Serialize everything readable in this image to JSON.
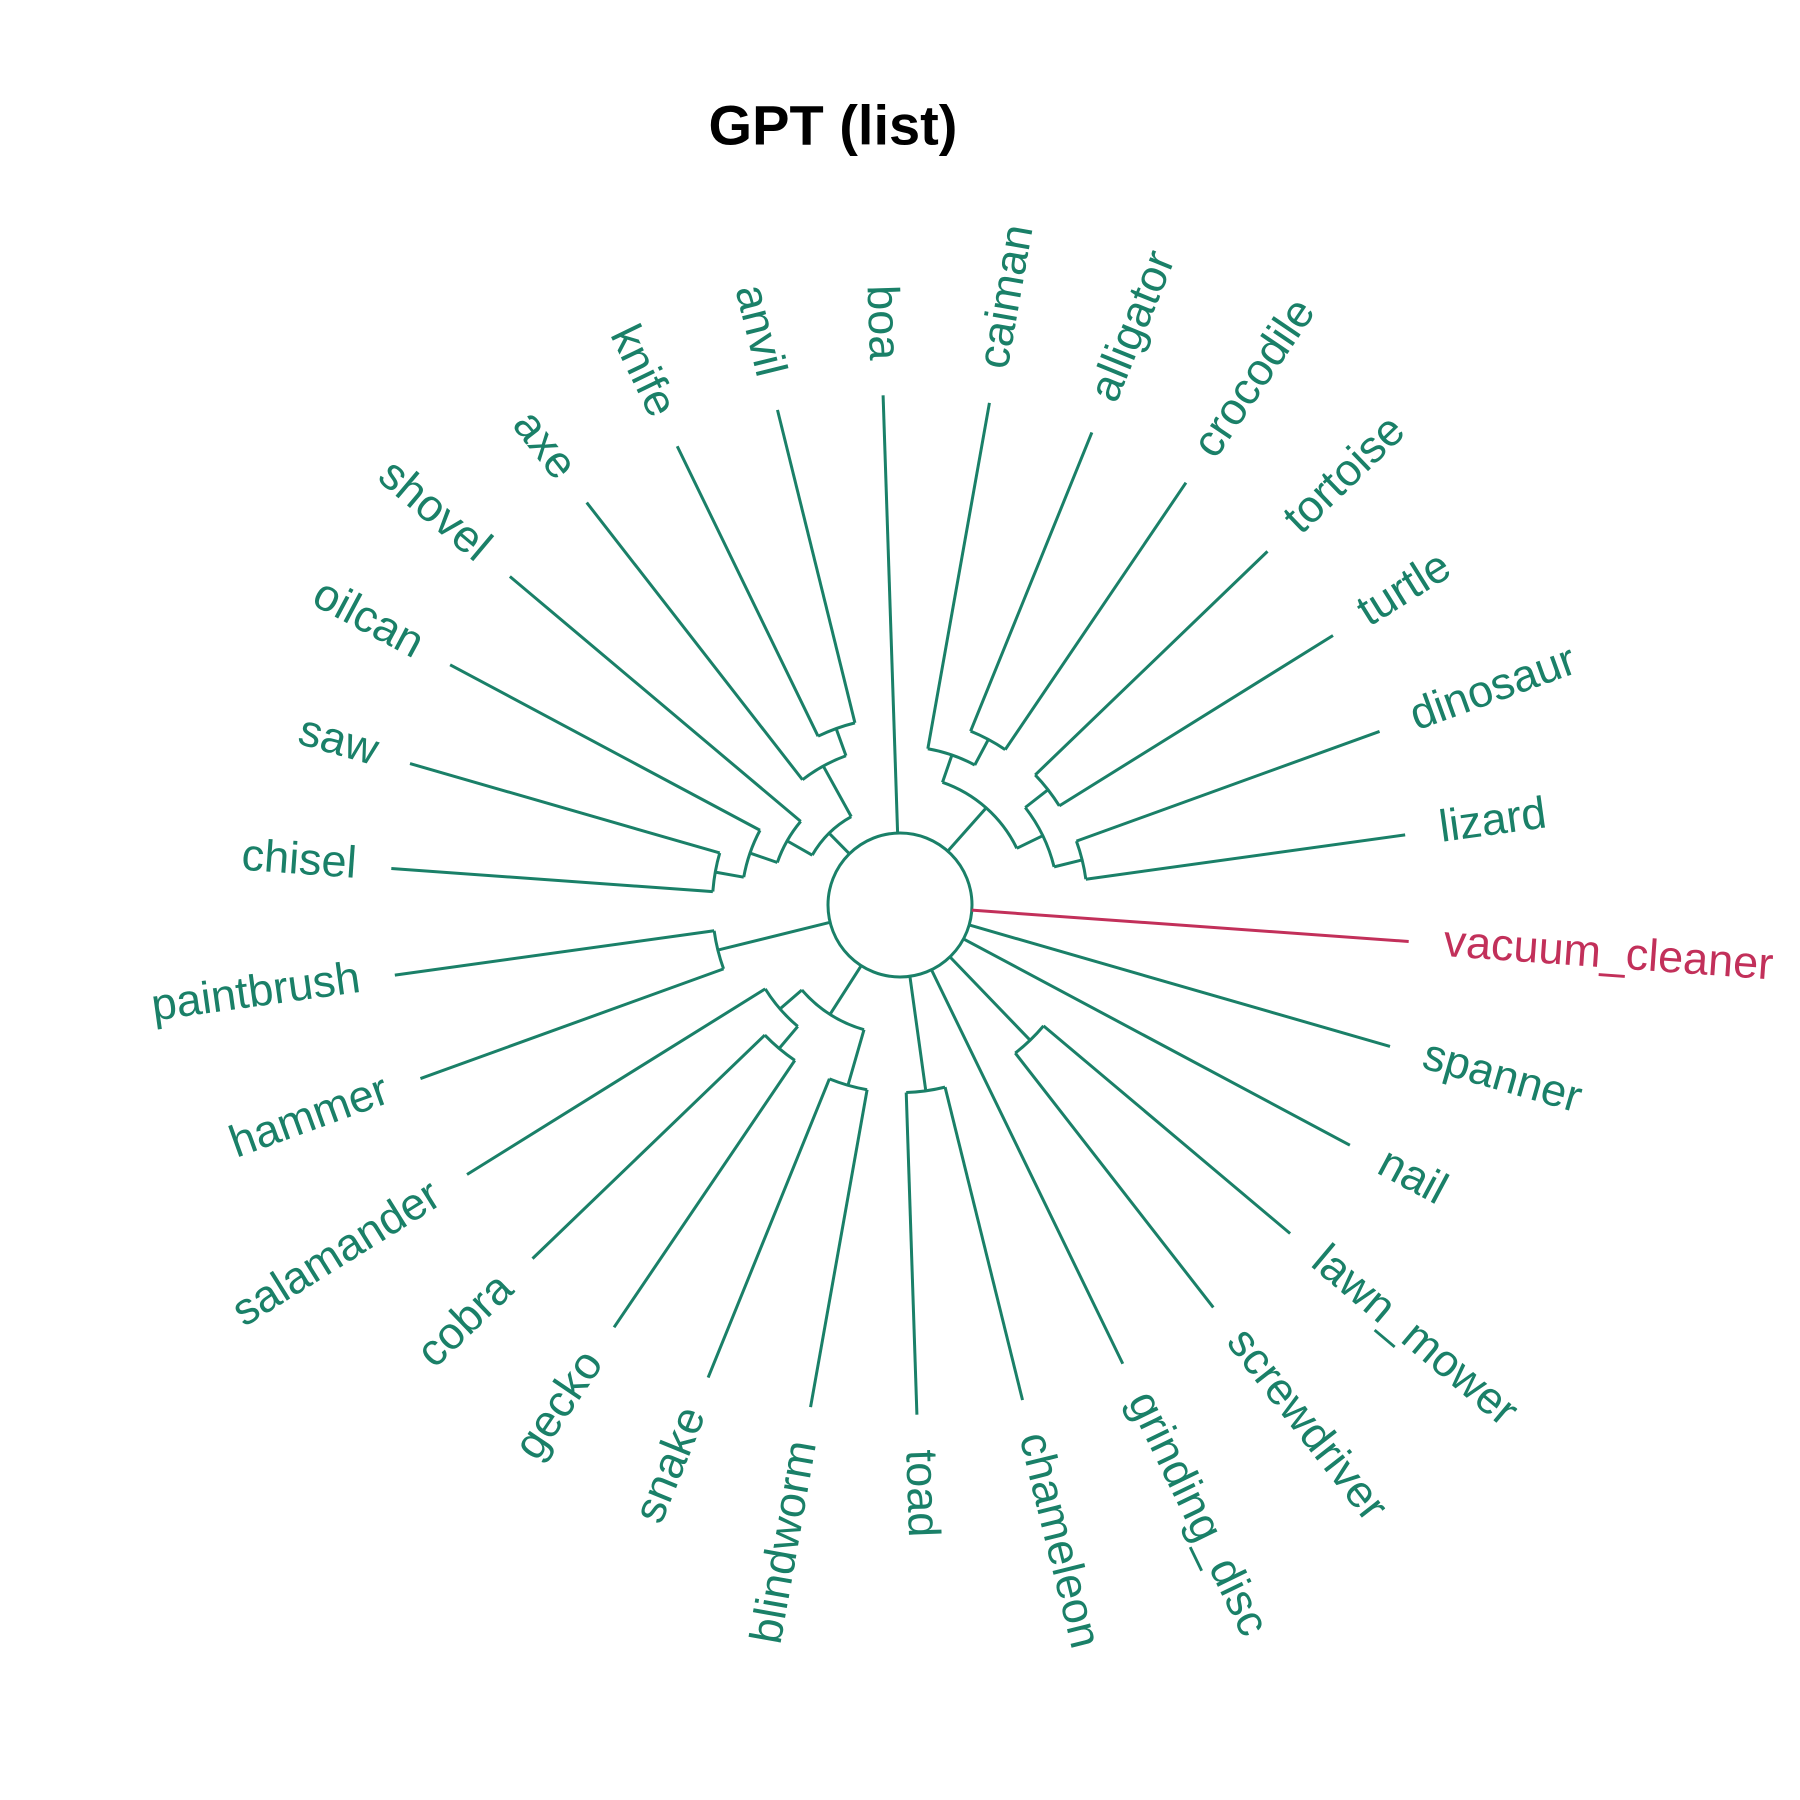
{
  "title": "GPT (list)",
  "colors": {
    "main": "#1a8068",
    "outlier": "#c2305a"
  },
  "chart_data": {
    "type": "circular-dendrogram",
    "tips": [
      {
        "name": "lizard",
        "color": "main"
      },
      {
        "name": "dinosaur",
        "color": "main"
      },
      {
        "name": "turtle",
        "color": "main"
      },
      {
        "name": "tortoise",
        "color": "main"
      },
      {
        "name": "crocodile",
        "color": "main"
      },
      {
        "name": "alligator",
        "color": "main"
      },
      {
        "name": "caiman",
        "color": "main"
      },
      {
        "name": "boa",
        "color": "main"
      },
      {
        "name": "anvil",
        "color": "main"
      },
      {
        "name": "knife",
        "color": "main"
      },
      {
        "name": "axe",
        "color": "main"
      },
      {
        "name": "shovel",
        "color": "main"
      },
      {
        "name": "oilcan",
        "color": "main"
      },
      {
        "name": "saw",
        "color": "main"
      },
      {
        "name": "chisel",
        "color": "main"
      },
      {
        "name": "paintbrush",
        "color": "main"
      },
      {
        "name": "hammer",
        "color": "main"
      },
      {
        "name": "salamander",
        "color": "main"
      },
      {
        "name": "cobra",
        "color": "main"
      },
      {
        "name": "gecko",
        "color": "main"
      },
      {
        "name": "snake",
        "color": "main"
      },
      {
        "name": "blindworm",
        "color": "main"
      },
      {
        "name": "toad",
        "color": "main"
      },
      {
        "name": "chameleon",
        "color": "main"
      },
      {
        "name": "grinding_disc",
        "color": "main"
      },
      {
        "name": "screwdriver",
        "color": "main"
      },
      {
        "name": "lawn_mower",
        "color": "main"
      },
      {
        "name": "nail",
        "color": "main"
      },
      {
        "name": "spanner",
        "color": "main"
      },
      {
        "name": "vacuum_cleaner",
        "color": "outlier"
      }
    ],
    "tree": {
      "children": [
        {
          "children": [
            {
              "children": [
                {
                  "children": [
                    {
                      "tip": 0
                    },
                    {
                      "tip": 1
                    }
                  ]
                },
                {
                  "children": [
                    {
                      "tip": 2
                    },
                    {
                      "tip": 3
                    }
                  ]
                }
              ]
            },
            {
              "children": [
                {
                  "children": [
                    {
                      "tip": 4
                    },
                    {
                      "tip": 5
                    }
                  ]
                },
                {
                  "tip": 6
                }
              ]
            }
          ]
        },
        {
          "tip": 7
        },
        {
          "children": [
            {
              "children": [
                {
                  "children": [
                    {
                      "tip": 8
                    },
                    {
                      "tip": 9
                    }
                  ]
                },
                {
                  "tip": 10
                }
              ]
            },
            {
              "children": [
                {
                  "tip": 11
                },
                {
                  "children": [
                    {
                      "tip": 12
                    },
                    {
                      "children": [
                        {
                          "tip": 13
                        },
                        {
                          "tip": 14
                        }
                      ]
                    }
                  ]
                }
              ]
            }
          ]
        },
        {
          "children": [
            {
              "tip": 15
            },
            {
              "tip": 16
            }
          ]
        },
        {
          "children": [
            {
              "children": [
                {
                  "tip": 17
                },
                {
                  "children": [
                    {
                      "tip": 18
                    },
                    {
                      "tip": 19
                    }
                  ]
                }
              ]
            },
            {
              "children": [
                {
                  "tip": 20
                },
                {
                  "tip": 21
                }
              ]
            }
          ]
        },
        {
          "children": [
            {
              "tip": 22
            },
            {
              "tip": 23
            }
          ]
        },
        {
          "tip": 24
        },
        {
          "children": [
            {
              "tip": 25
            },
            {
              "tip": 26
            }
          ]
        },
        {
          "tip": 27
        },
        {
          "tip": 28
        },
        {
          "tip": 29
        }
      ]
    }
  }
}
